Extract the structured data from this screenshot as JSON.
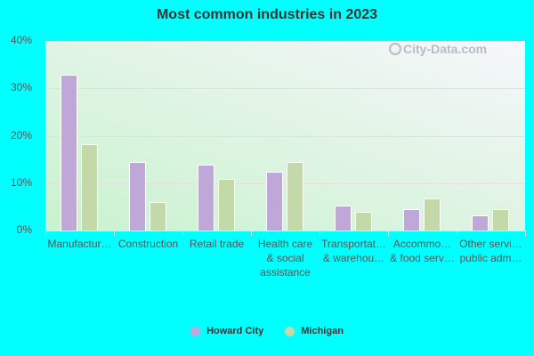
{
  "chart_data": {
    "type": "bar",
    "title": "Most common industries in 2023",
    "xlabel": "",
    "ylabel": "",
    "ylim": [
      0,
      40
    ],
    "yticks": [
      "0%",
      "10%",
      "20%",
      "30%",
      "40%"
    ],
    "grid": true,
    "legend_position": "bottom",
    "categories": [
      "Manufactur…",
      "Construction",
      "Retail trade",
      "Health care & social assistance",
      "Transportat… & warehou…",
      "Accommo… & food serv…",
      "Other servi… public adm…"
    ],
    "category_lines": [
      [
        "Manufactur…"
      ],
      [
        "Construction"
      ],
      [
        "Retail trade"
      ],
      [
        "Health care",
        "& social",
        "assistance"
      ],
      [
        "Transportat…",
        "& warehou…"
      ],
      [
        "Accommo…",
        "& food serv…"
      ],
      [
        "Other servi…",
        "public adm…"
      ]
    ],
    "series": [
      {
        "name": "Howard City",
        "color": "#bfa8d8",
        "values": [
          32.8,
          14.4,
          13.9,
          12.4,
          5.3,
          4.5,
          3.2
        ]
      },
      {
        "name": "Michigan",
        "color": "#c4d9a8",
        "values": [
          18.2,
          6.0,
          10.9,
          14.4,
          3.9,
          6.8,
          4.5
        ]
      }
    ]
  },
  "watermark": "City-Data.com"
}
